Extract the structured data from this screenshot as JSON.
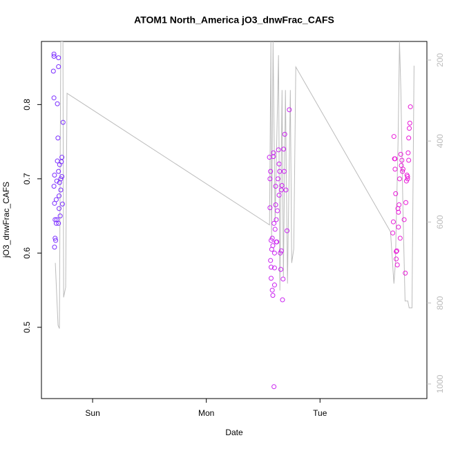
{
  "chart_data": {
    "type": "scatter",
    "title": "ATOM1 North_America jO3_dnwFrac_CAFS",
    "x_label": "Date",
    "y_label": "jO3_dnwFrac_CAFS",
    "xlim": [
      -0.45,
      2.94
    ],
    "xticks": [
      {
        "value": 0,
        "label": "Sun"
      },
      {
        "value": 1,
        "label": "Mon"
      },
      {
        "value": 2,
        "label": "Tue"
      }
    ],
    "ylim": [
      0.404,
      0.885
    ],
    "yticks": [
      0.5,
      0.6,
      0.7,
      0.8
    ],
    "y2lim": [
      1036,
      154
    ],
    "y2ticks": [
      200,
      400,
      600,
      800,
      1000
    ],
    "y2_color": "#bbbbbb",
    "series": [
      {
        "color": "#7a2cff",
        "x": [
          -0.34,
          -0.34,
          -0.345,
          -0.34,
          -0.335,
          -0.34,
          -0.335,
          -0.33,
          -0.33,
          -0.335,
          -0.32,
          -0.32,
          -0.315,
          -0.31,
          -0.31,
          -0.305,
          -0.3,
          -0.3,
          -0.3,
          -0.295,
          -0.29,
          -0.29,
          -0.285,
          -0.28,
          -0.28,
          -0.275,
          -0.27,
          -0.265,
          -0.26,
          -0.3,
          -0.325,
          -0.315,
          -0.27,
          -0.295
        ],
        "values": [
          0.868,
          0.865,
          0.845,
          0.809,
          0.705,
          0.69,
          0.667,
          0.645,
          0.62,
          0.608,
          0.672,
          0.64,
          0.645,
          0.724,
          0.801,
          0.755,
          0.863,
          0.851,
          0.71,
          0.677,
          0.695,
          0.719,
          0.65,
          0.685,
          0.7,
          0.723,
          0.729,
          0.666,
          0.776,
          0.64,
          0.617,
          0.697,
          0.703,
          0.66
        ]
      },
      {
        "color": "#c91ff0",
        "x": [
          1.555,
          1.56,
          1.56,
          1.565,
          1.565,
          1.57,
          1.57,
          1.575,
          1.58,
          1.58,
          1.585,
          1.59,
          1.59,
          1.595,
          1.595,
          1.6,
          1.6,
          1.605,
          1.61,
          1.61,
          1.615,
          1.62,
          1.625,
          1.63,
          1.635,
          1.64,
          1.645,
          1.65,
          1.655,
          1.66,
          1.665,
          1.67,
          1.675,
          1.68,
          1.685,
          1.69,
          1.7,
          1.71,
          1.73,
          1.57,
          1.585,
          1.6,
          1.615,
          1.64,
          1.66
        ],
        "values": [
          0.729,
          0.7,
          0.661,
          0.71,
          0.59,
          0.566,
          0.581,
          0.605,
          0.62,
          0.55,
          0.543,
          0.73,
          0.735,
          0.64,
          0.42,
          0.6,
          0.58,
          0.632,
          0.665,
          0.69,
          0.645,
          0.615,
          0.657,
          0.7,
          0.739,
          0.72,
          0.71,
          0.6,
          0.578,
          0.685,
          0.691,
          0.537,
          0.565,
          0.74,
          0.71,
          0.76,
          0.685,
          0.63,
          0.793,
          0.617,
          0.61,
          0.557,
          0.615,
          0.678,
          0.603
        ]
      },
      {
        "color": "#e81ad8",
        "x": [
          2.64,
          2.645,
          2.65,
          2.655,
          2.66,
          2.665,
          2.67,
          2.675,
          2.68,
          2.685,
          2.69,
          2.69,
          2.695,
          2.7,
          2.705,
          2.71,
          2.715,
          2.72,
          2.725,
          2.73,
          2.74,
          2.75,
          2.755,
          2.76,
          2.765,
          2.77,
          2.775,
          2.78,
          2.785,
          2.79,
          2.795,
          2.78,
          2.77,
          2.66,
          2.67
        ],
        "values": [
          0.627,
          0.642,
          0.757,
          0.727,
          0.713,
          0.68,
          0.592,
          0.603,
          0.584,
          0.66,
          0.655,
          0.635,
          0.665,
          0.7,
          0.62,
          0.733,
          0.718,
          0.725,
          0.71,
          0.713,
          0.645,
          0.573,
          0.668,
          0.697,
          0.705,
          0.703,
          0.735,
          0.755,
          0.768,
          0.775,
          0.797,
          0.725,
          0.7,
          0.727,
          0.602
        ]
      },
      {
        "type": "line",
        "axis": "y2",
        "color": "#bbbbbb",
        "x": [
          -0.328,
          -0.304,
          -0.292,
          -0.28,
          -0.261,
          -0.255,
          -0.237,
          -0.225,
          1.556,
          1.568,
          1.574,
          1.587,
          1.605,
          1.635,
          1.647,
          1.666,
          1.678,
          1.696,
          1.714,
          1.739,
          1.751,
          1.769,
          1.787,
          2.62,
          2.65,
          2.663,
          2.687,
          2.699,
          2.711,
          2.729,
          2.748,
          2.772,
          2.784,
          2.809,
          2.827
        ],
        "values": [
          701,
          855,
          863,
          154,
          154,
          786,
          761,
          282,
          607,
          154,
          641,
          154,
          598,
          188,
          769,
          274,
          735,
          274,
          752,
          274,
          701,
          667,
          217,
          624,
          752,
          701,
          393,
          154,
          274,
          564,
          795,
          795,
          812,
          812,
          214
        ]
      }
    ]
  }
}
